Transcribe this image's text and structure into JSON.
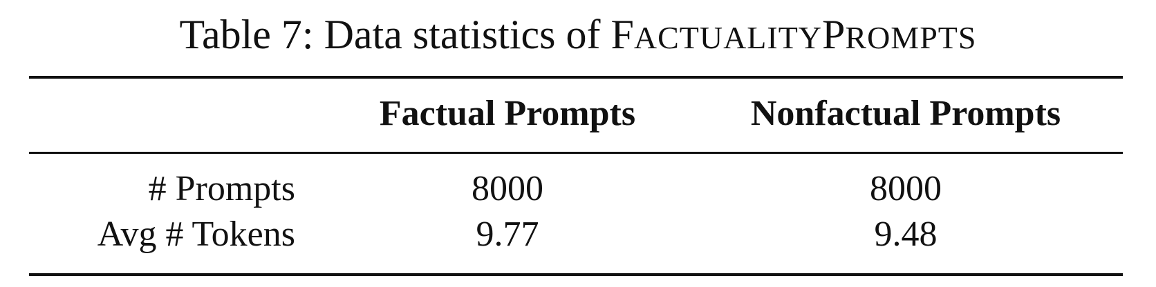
{
  "caption": {
    "prefix": "Table 7: Data statistics of ",
    "dataset_name": [
      {
        "big": "F",
        "small": "ACTUALITY"
      },
      {
        "big": "P",
        "small": "ROMPTS"
      }
    ]
  },
  "table": {
    "columns": [
      "Factual Prompts",
      "Nonfactual Prompts"
    ],
    "rows": [
      {
        "label": "# Prompts",
        "factual": "8000",
        "nonfactual": "8000"
      },
      {
        "label": "Avg # Tokens",
        "factual": "9.77",
        "nonfactual": "9.48"
      }
    ]
  }
}
